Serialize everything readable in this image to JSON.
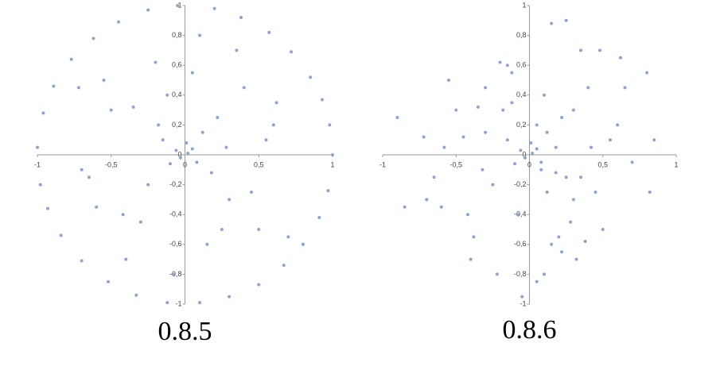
{
  "chart_data": [
    {
      "type": "scatter",
      "title": "0.8.5",
      "color": "#8ca5cf",
      "xlim": [
        -1,
        1
      ],
      "ylim": [
        -1,
        1
      ],
      "xticks": [
        -1,
        {
          "value": -0.5,
          "label": "-0,5"
        },
        0,
        {
          "value": 0.5,
          "label": "0,5"
        },
        1
      ],
      "yticks": [
        -1,
        {
          "value": -0.8,
          "label": "-0,8"
        },
        {
          "value": -0.6,
          "label": "-0,6"
        },
        {
          "value": -0.4,
          "label": "-0,4"
        },
        {
          "value": -0.2,
          "label": "-0,2"
        },
        0,
        {
          "value": 0.2,
          "label": "0,2"
        },
        {
          "value": 0.4,
          "label": "0,4"
        },
        {
          "value": 0.6,
          "label": "0,6"
        },
        {
          "value": 0.8,
          "label": "0,8"
        },
        1
      ],
      "x": [
        1,
        0.98,
        0.93,
        0.85,
        0.72,
        0.57,
        0.38,
        0.2,
        -0.05,
        -0.25,
        -0.45,
        -0.62,
        -0.77,
        -0.89,
        -0.96,
        -1,
        -0.98,
        -0.93,
        -0.84,
        -0.7,
        -0.52,
        -0.33,
        -0.12,
        0.1,
        0.3,
        0.5,
        0.67,
        0.8,
        0.91,
        0.97,
        0.02,
        -0.03,
        0.05,
        -0.06,
        0.08,
        0.01,
        -0.1,
        0.12,
        -0.15,
        0.18,
        0.22,
        -0.25,
        0.3,
        -0.35,
        0.4,
        -0.42,
        0.5,
        -0.55,
        0.6,
        -0.65,
        0.15,
        -0.2,
        0.35,
        -0.4,
        0.45,
        -0.5,
        0.55,
        -0.6,
        0.7,
        -0.72,
        0.1,
        -0.08,
        0.25,
        -0.3,
        0.05,
        -0.12,
        0.62,
        -0.7,
        0.28,
        -0.18
      ],
      "y": [
        0,
        0.2,
        0.37,
        0.52,
        0.69,
        0.82,
        0.92,
        0.98,
        1,
        0.97,
        0.89,
        0.78,
        0.64,
        0.46,
        0.28,
        0.05,
        -0.2,
        -0.36,
        -0.54,
        -0.71,
        -0.85,
        -0.94,
        -0.99,
        -0.99,
        -0.95,
        -0.87,
        -0.74,
        -0.6,
        -0.42,
        -0.24,
        0.01,
        -0.02,
        0.04,
        0.03,
        -0.05,
        0.08,
        -0.06,
        0.15,
        0.1,
        -0.12,
        0.25,
        -0.2,
        -0.3,
        0.32,
        0.45,
        -0.4,
        -0.5,
        0.5,
        0.2,
        -0.15,
        -0.6,
        0.62,
        0.7,
        -0.7,
        -0.25,
        0.3,
        0.1,
        -0.35,
        -0.55,
        0.45,
        0.8,
        -0.8,
        -0.5,
        -0.45,
        0.55,
        0.4,
        0.35,
        -0.1,
        0.05,
        0.2
      ]
    },
    {
      "type": "scatter",
      "title": "0.8.6",
      "color": "#8ca5cf",
      "xlim": [
        -1,
        1
      ],
      "ylim": [
        -1,
        1
      ],
      "xticks": [
        -1,
        {
          "value": -0.5,
          "label": "-0,5"
        },
        0,
        {
          "value": 0.5,
          "label": "0,5"
        },
        1
      ],
      "yticks": [
        -1,
        {
          "value": -0.8,
          "label": "-0,8"
        },
        {
          "value": -0.6,
          "label": "-0,6"
        },
        {
          "value": -0.4,
          "label": "-0,4"
        },
        {
          "value": -0.2,
          "label": "-0,2"
        },
        0,
        {
          "value": 0.2,
          "label": "0,2"
        },
        {
          "value": 0.4,
          "label": "0,4"
        },
        {
          "value": 0.6,
          "label": "0,6"
        },
        {
          "value": 0.8,
          "label": "0,8"
        },
        1
      ],
      "x": [
        0.02,
        -0.03,
        0.05,
        -0.06,
        0.08,
        0.01,
        -0.1,
        0.12,
        -0.15,
        0.18,
        0.22,
        -0.25,
        0.3,
        -0.35,
        0.4,
        -0.42,
        0.5,
        -0.55,
        0.6,
        -0.65,
        0.15,
        -0.2,
        0.35,
        -0.4,
        0.45,
        -0.5,
        0.55,
        -0.6,
        0.7,
        -0.72,
        0.1,
        -0.08,
        0.25,
        -0.3,
        0.05,
        -0.12,
        0.62,
        -0.7,
        0.28,
        -0.18,
        -0.9,
        0.85,
        -0.85,
        0.82,
        0.8,
        -0.3,
        0.15,
        0.25,
        -0.05,
        0.2,
        0.32,
        0.1,
        -0.22,
        0.48,
        -0.45,
        0.38,
        0.12,
        -0.32,
        0.05,
        0.42,
        -0.12,
        0.65,
        -0.58,
        0.22,
        0.3,
        -0.15,
        0.08,
        -0.38,
        0.18,
        0.35
      ],
      "y": [
        0.01,
        -0.02,
        0.04,
        0.03,
        -0.05,
        0.08,
        -0.06,
        0.15,
        0.1,
        -0.12,
        0.25,
        -0.2,
        -0.3,
        0.32,
        0.45,
        -0.4,
        -0.5,
        0.5,
        0.2,
        -0.15,
        -0.6,
        0.62,
        0.7,
        -0.7,
        -0.25,
        0.3,
        0.1,
        -0.35,
        -0.05,
        0.12,
        0.4,
        -0.4,
        -0.15,
        0.15,
        -0.85,
        0.55,
        0.65,
        -0.3,
        -0.45,
        0.3,
        0.25,
        0.1,
        -0.35,
        -0.25,
        0.55,
        0.45,
        0.88,
        0.9,
        -0.95,
        -0.55,
        -0.7,
        -0.8,
        -0.8,
        0.7,
        0.12,
        -0.58,
        -0.25,
        -0.1,
        0.2,
        0.05,
        0.35,
        0.45,
        0.05,
        -0.65,
        0.3,
        0.6,
        -0.1,
        -0.55,
        0.05,
        -0.15
      ]
    }
  ]
}
